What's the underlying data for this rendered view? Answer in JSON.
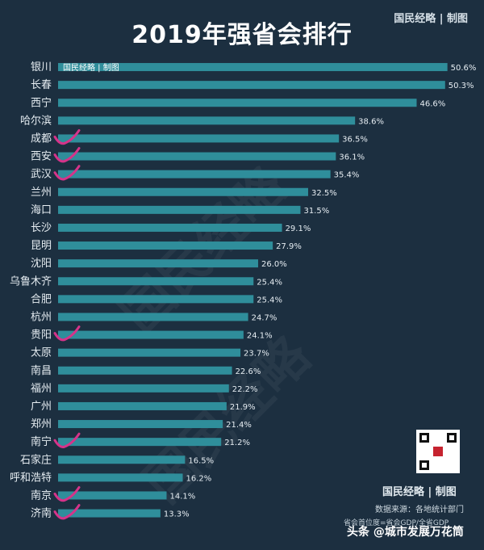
{
  "chart_data": {
    "type": "bar",
    "orientation": "horizontal",
    "title": "2019年强省会排行",
    "categories": [
      "银川",
      "长春",
      "西宁",
      "哈尔滨",
      "成都",
      "西安",
      "武汉",
      "兰州",
      "海口",
      "长沙",
      "昆明",
      "沈阳",
      "乌鲁木齐",
      "合肥",
      "杭州",
      "贵阳",
      "太原",
      "南昌",
      "福州",
      "广州",
      "郑州",
      "南宁",
      "石家庄",
      "呼和浩特",
      "南京",
      "济南"
    ],
    "values": [
      50.6,
      50.3,
      46.6,
      38.6,
      36.5,
      36.1,
      35.4,
      32.5,
      31.5,
      29.1,
      27.9,
      26.0,
      25.4,
      25.4,
      24.7,
      24.1,
      23.7,
      22.6,
      22.2,
      21.9,
      21.4,
      21.2,
      16.5,
      16.2,
      14.1,
      13.3
    ],
    "value_labels": [
      "50.6%",
      "50.3%",
      "46.6%",
      "38.6%",
      "36.5%",
      "36.1%",
      "35.4%",
      "32.5%",
      "31.5%",
      "29.1%",
      "27.9%",
      "26.0%",
      "25.4%",
      "25.4%",
      "24.7%",
      "24.1%",
      "23.7%",
      "22.6%",
      "22.2%",
      "21.9%",
      "21.4%",
      "21.2%",
      "16.5%",
      "16.2%",
      "14.1%",
      "13.3%"
    ],
    "checkmarked": [
      "成都",
      "西安",
      "武汉",
      "贵阳",
      "南宁",
      "南京",
      "济南"
    ],
    "xlim": [
      0,
      52
    ],
    "bar_color": "#2f8e9b",
    "check_color": "#d6338a"
  },
  "brand": "国民经略 | 制图",
  "first_bar_brand": "国民经略 | 制图",
  "watermark_bg": "国民经略",
  "source": "数据来源：各地统计部门",
  "note": "省会首位度=省会GDP/全省GDP",
  "overlay": "头条 @城市发展万花筒",
  "colors": {
    "background": "#1c2f40",
    "text": "#e8eef2"
  }
}
